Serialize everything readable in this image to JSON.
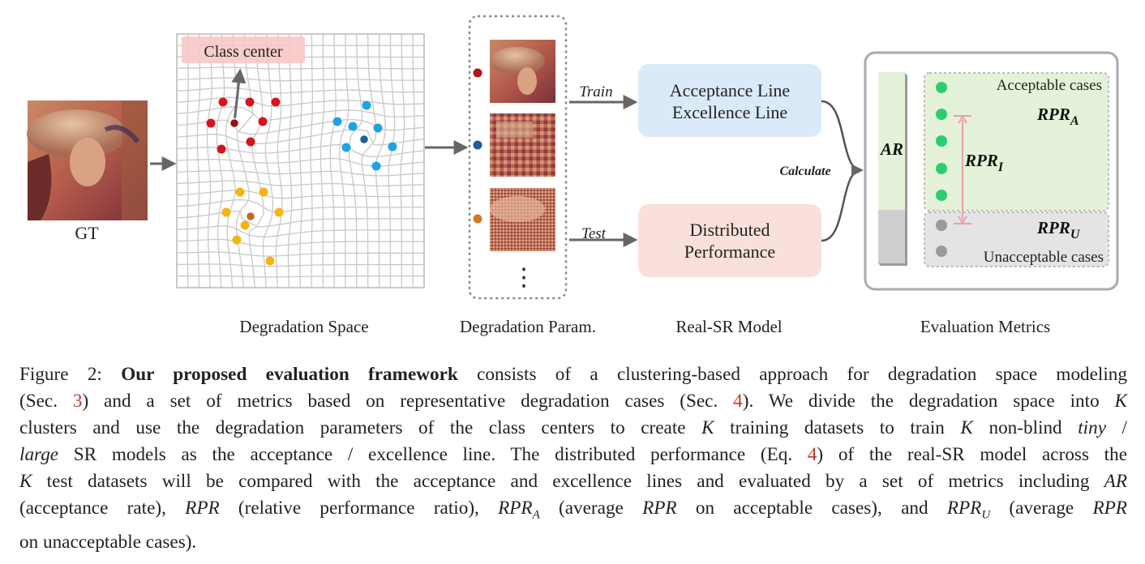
{
  "figure": {
    "gt_label": "GT",
    "class_center_label": "Class center",
    "train_label": "Train",
    "test_label": "Test",
    "calculate_label": "Calculate",
    "model_box_top": [
      "Acceptance Line",
      "Excellence Line"
    ],
    "model_box_bottom": [
      "Distributed",
      "Performance"
    ],
    "ar_label": "AR",
    "acceptable_label": "Acceptable cases",
    "unacceptable_label": "Unacceptable cases",
    "rpr_a": {
      "base": "RPR",
      "sub": "A"
    },
    "rpr_i": {
      "base": "RPR",
      "sub": "I"
    },
    "rpr_u": {
      "base": "RPR",
      "sub": "U"
    },
    "ellipsis": "⋮",
    "section_titles": {
      "degradation_space": "Degradation Space",
      "degradation_param": "Degradation Param.",
      "real_sr_model": "Real-SR Model",
      "evaluation_metrics": "Evaluation Metrics"
    },
    "colors": {
      "red": "#d7141e",
      "blue": "#1fa3e0",
      "yellow": "#f5b50f",
      "center_red": "#9a1010",
      "center_blue": "#1a5f9a",
      "center_yellow": "#c26b1e",
      "green_dot": "#2ecc71",
      "gray_dot": "#9a9a9a",
      "top_box": "#dbeaf8",
      "bottom_box": "#fae0da",
      "acceptable_bg": "#e3f2d8",
      "unacceptable_bg": "#e4e4e4"
    }
  },
  "caption": {
    "lines": [
      [
        "Figure 2:  ",
        {
          "b": "Our proposed evaluation framework"
        },
        " consists of a clustering-based approach for degradation space modeling"
      ],
      [
        "(Sec. ",
        {
          "ref": "3"
        },
        ") and a set of metrics based on representative degradation cases (Sec. ",
        {
          "ref": "4"
        },
        ").  We divide the degradation space into ",
        {
          "m": "K"
        }
      ],
      [
        "clusters and use the degradation parameters of the class centers to create ",
        {
          "m": "K"
        },
        " training datasets to train ",
        {
          "m": "K"
        },
        " non-blind ",
        {
          "i": "tiny"
        },
        " /"
      ],
      [
        {
          "i": "large"
        },
        " SR models as the acceptance / excellence line.  The distributed performance (Eq. ",
        {
          "ref": "4"
        },
        ") of the real-SR model across the"
      ],
      [
        {
          "m": "K"
        },
        " test datasets will be compared with the acceptance and excellence lines and evaluated by a set of metrics including ",
        {
          "m": "AR"
        }
      ],
      [
        "(acceptance rate), ",
        {
          "m": "RPR"
        },
        " (relative performance ratio), ",
        {
          "m": "RPR",
          "sub": "A"
        },
        " (average ",
        {
          "m": "RPR"
        },
        " on acceptable cases), and ",
        {
          "m": "RPR",
          "sub": "U"
        },
        " (average ",
        {
          "m": "RPR"
        }
      ],
      [
        "on unacceptable cases)."
      ]
    ]
  }
}
